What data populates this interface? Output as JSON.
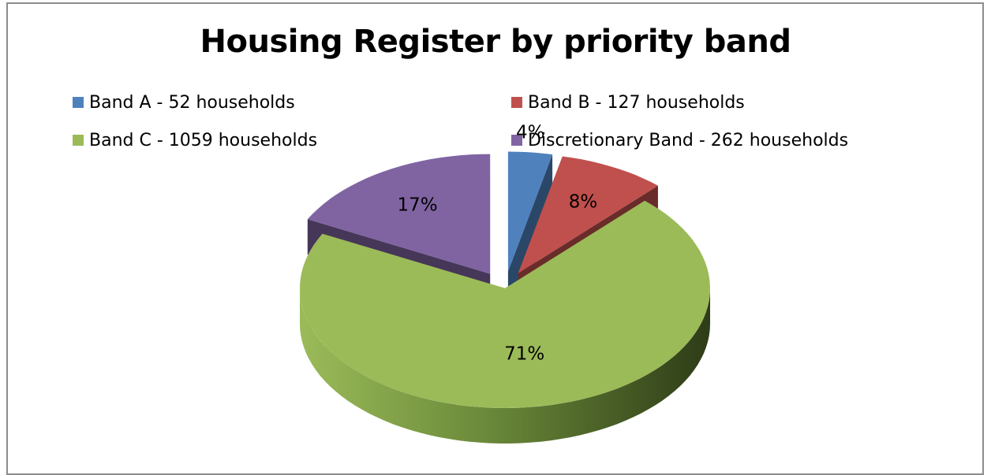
{
  "chart_data": {
    "type": "pie",
    "title": "Housing Register by priority band",
    "series": [
      {
        "name": "Band A - 52 households",
        "value": 52,
        "label": "4%",
        "color": "#4f81bd"
      },
      {
        "name": "Band B - 127 households",
        "value": 127,
        "label": "8%",
        "color": "#c0504d"
      },
      {
        "name": "Band C - 1059 households",
        "value": 1059,
        "label": "71%",
        "color": "#9bbb59"
      },
      {
        "name": "Discretionary Band - 262 households",
        "value": 262,
        "label": "17%",
        "color": "#8064a2"
      }
    ],
    "legend_position": "top",
    "style": "3d-exploded"
  }
}
